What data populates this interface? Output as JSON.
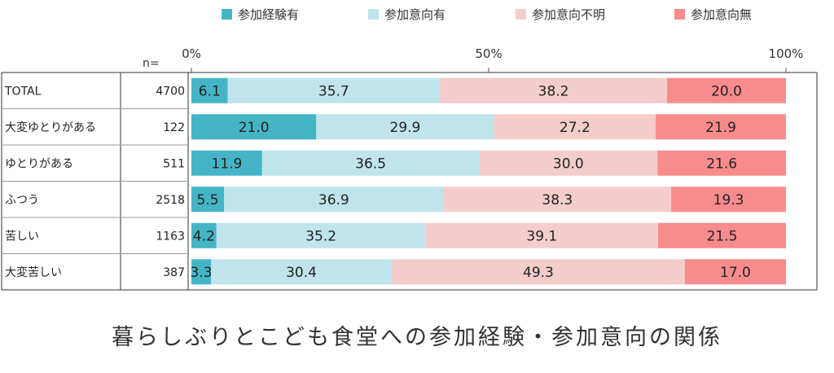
{
  "caption": "暮らしぶりとこども食堂への参加経験・参加意向の関係",
  "chart_data": {
    "type": "bar",
    "orientation": "horizontal",
    "stacked": true,
    "percent": true,
    "n_header": "n=",
    "axis_ticks": [
      "0%",
      "50%",
      "100%"
    ],
    "xlim": [
      0,
      100
    ],
    "legend_position": "top",
    "categories": [
      "TOTAL",
      "大変ゆとりがある",
      "ゆとりがある",
      "ふつう",
      "苦しい",
      "大変苦しい"
    ],
    "n": [
      4700,
      122,
      511,
      2518,
      1163,
      387
    ],
    "series": [
      {
        "name": "参加経験有",
        "color": "#45b5c6",
        "values": [
          6.1,
          21.0,
          11.9,
          5.5,
          4.2,
          3.3
        ]
      },
      {
        "name": "参加意向有",
        "color": "#bfe4ec",
        "values": [
          35.7,
          29.9,
          36.5,
          36.9,
          35.2,
          30.4
        ]
      },
      {
        "name": "参加意向不明",
        "color": "#f4cccc",
        "values": [
          38.2,
          27.2,
          30.0,
          38.3,
          39.1,
          49.3
        ]
      },
      {
        "name": "参加意向無",
        "color": "#f88b8c",
        "values": [
          20.0,
          21.9,
          21.6,
          19.3,
          21.5,
          17.0
        ]
      }
    ]
  }
}
